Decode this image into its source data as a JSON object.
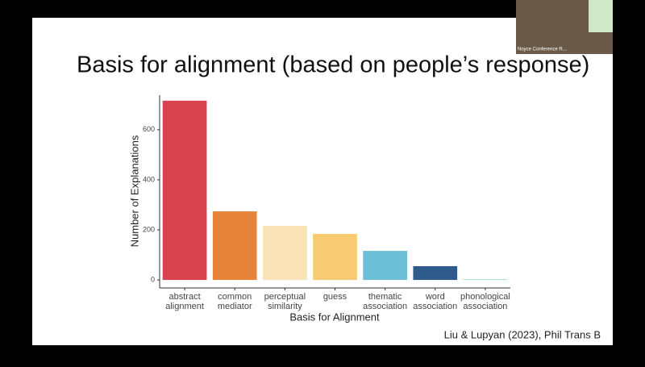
{
  "slide": {
    "title": "Basis for alignment (based on people’s response)",
    "citation": "Liu & Lupyan (2023), Phil Trans B"
  },
  "video": {
    "label": "Noyce Conference R..."
  },
  "chart_data": {
    "type": "bar",
    "x_label": "Basis for Alignment",
    "y_label": "Number of Explanations",
    "categories": [
      "abstract alignment",
      "common mediator",
      "perceptual similarity",
      "guess",
      "thematic association",
      "word association",
      "phonological association"
    ],
    "values": [
      716,
      274,
      216,
      184,
      116,
      55,
      3
    ],
    "colors": [
      "#d9434f",
      "#e8833a",
      "#fbe3b8",
      "#f8cb72",
      "#6cbfd6",
      "#2e5a8c",
      "#a8dde8"
    ],
    "ylim": [
      -32,
      738
    ],
    "yticks": [
      0,
      200,
      400,
      600
    ]
  }
}
